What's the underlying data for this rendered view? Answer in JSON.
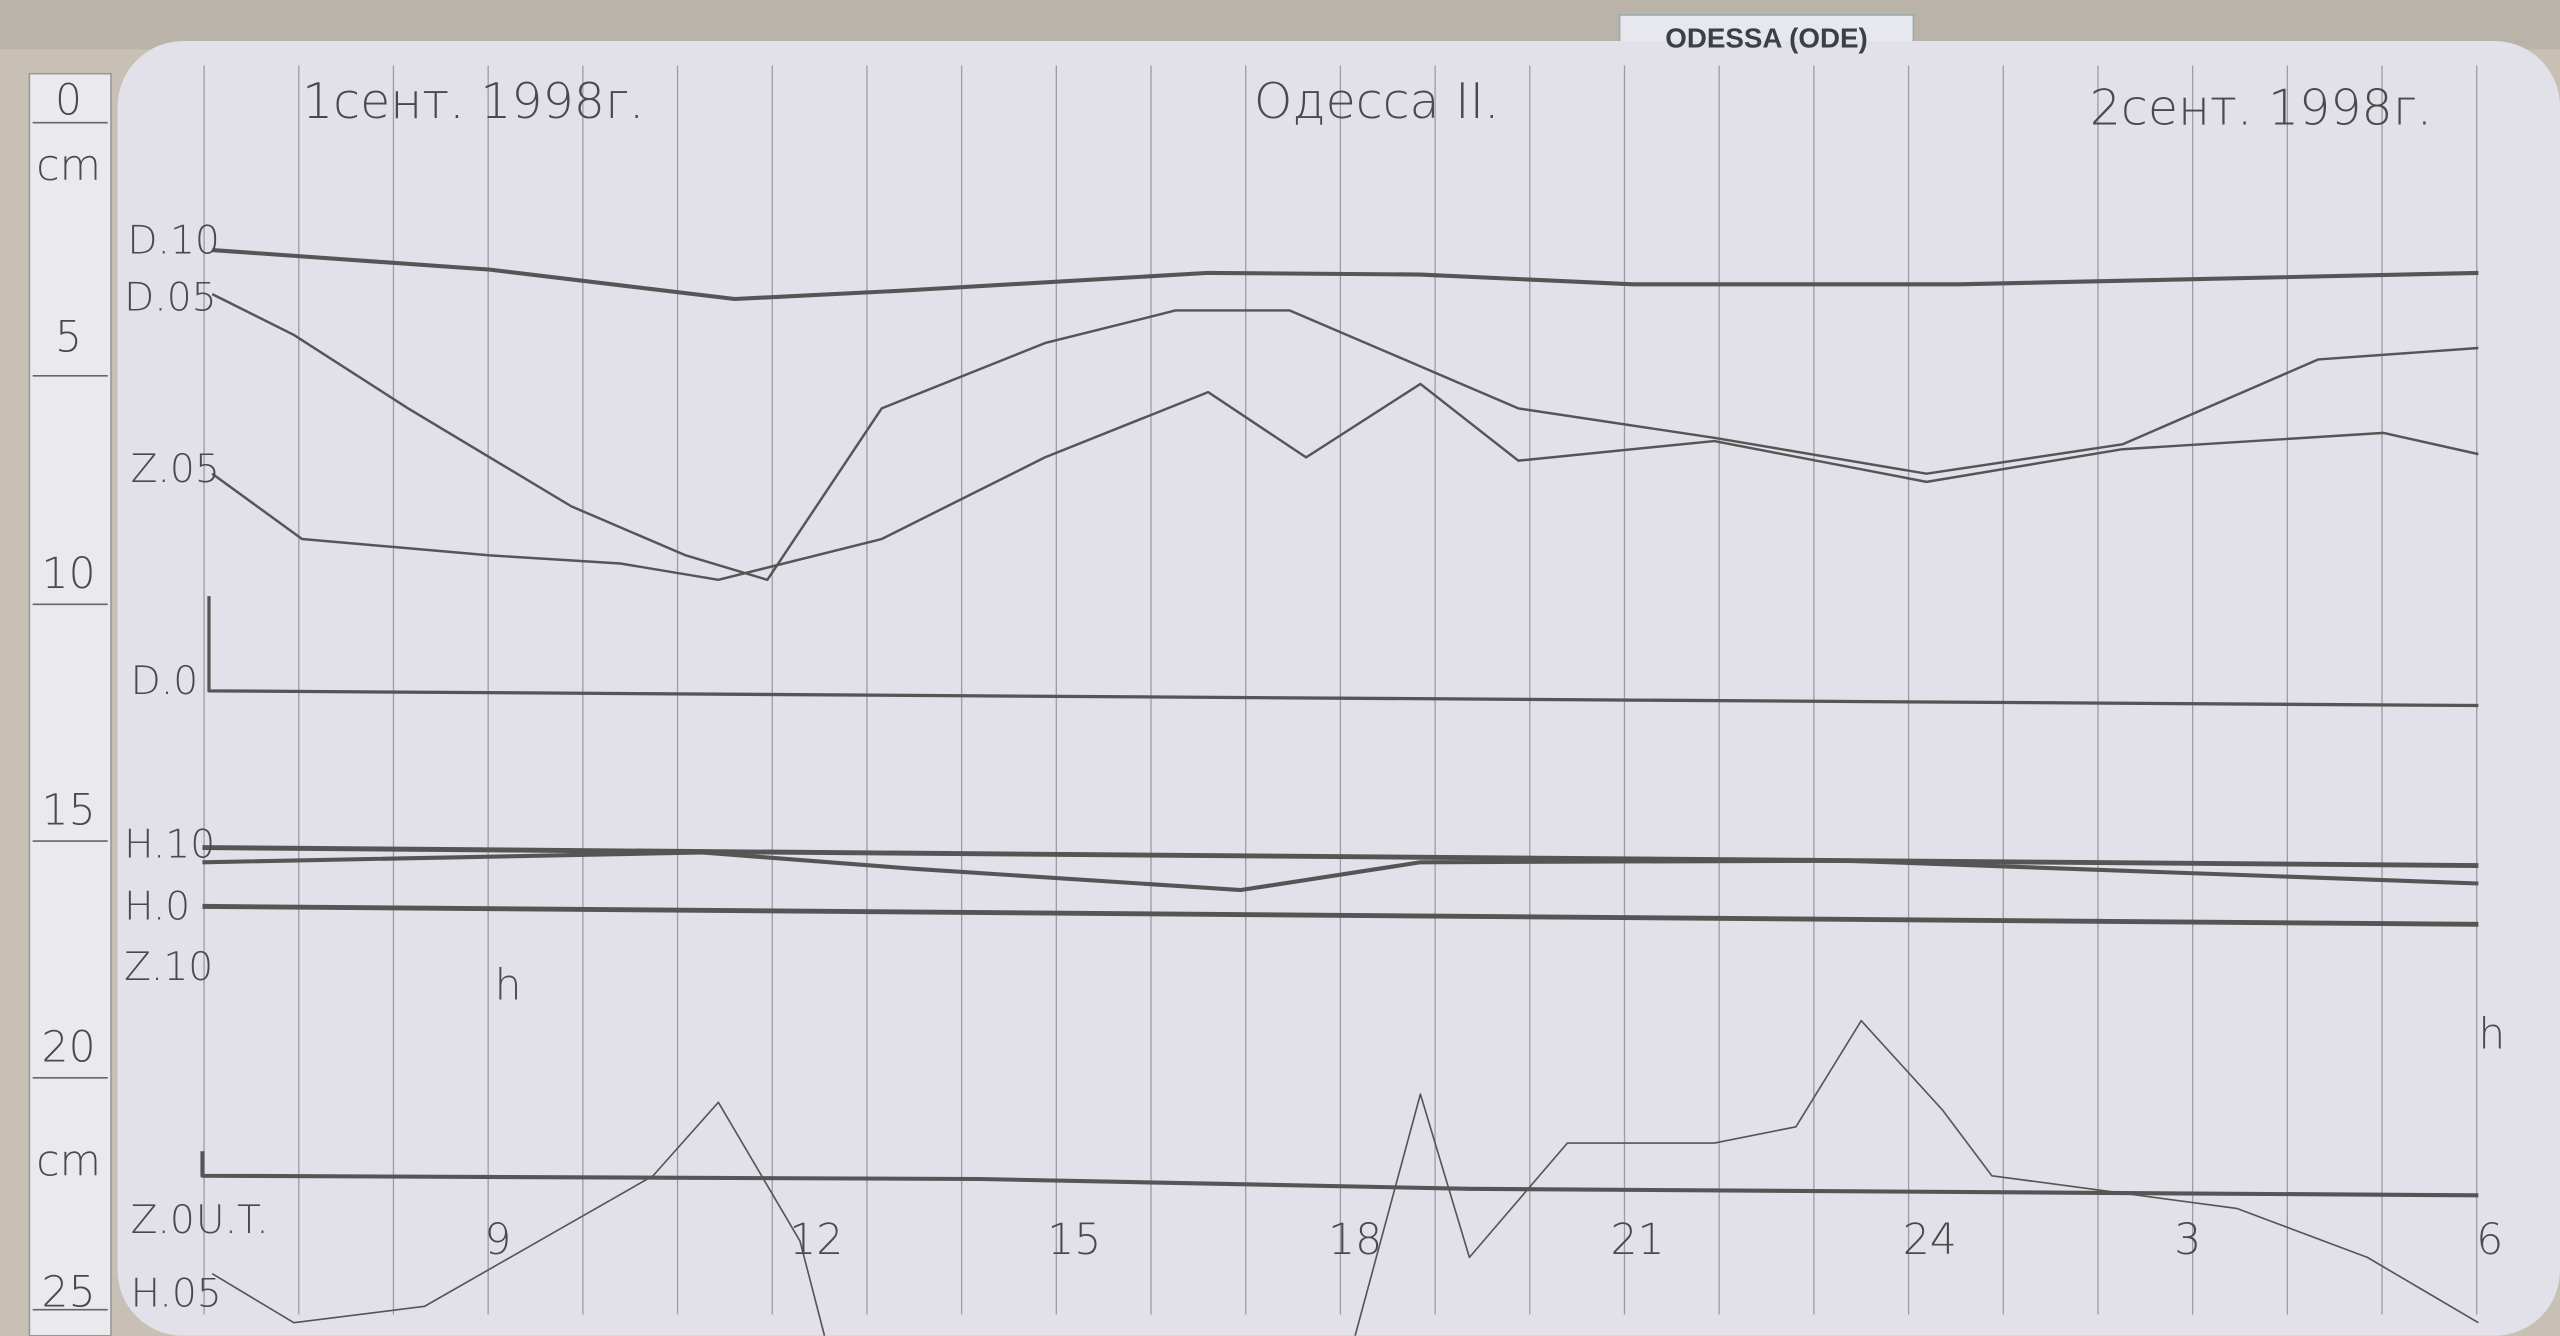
{
  "sign": "ODESSA (ODE)",
  "header": {
    "left": "1сент. 1998г.",
    "center": "Одесса II.",
    "right": "2сент. 1998г."
  },
  "trace_labels": [
    "D.10",
    "D.05",
    "Z.05",
    "D.0",
    "H.10",
    "H.0",
    "Z.10",
    "Z.0",
    "U.T.",
    "H.05"
  ],
  "unit_marks": [
    "h",
    "h"
  ],
  "hour_labels": [
    "9",
    "12",
    "15",
    "18",
    "21",
    "24",
    "3",
    "6"
  ],
  "ruler": [
    "0",
    "cm",
    "5",
    "10",
    "15",
    "20",
    "cm",
    "25"
  ]
}
